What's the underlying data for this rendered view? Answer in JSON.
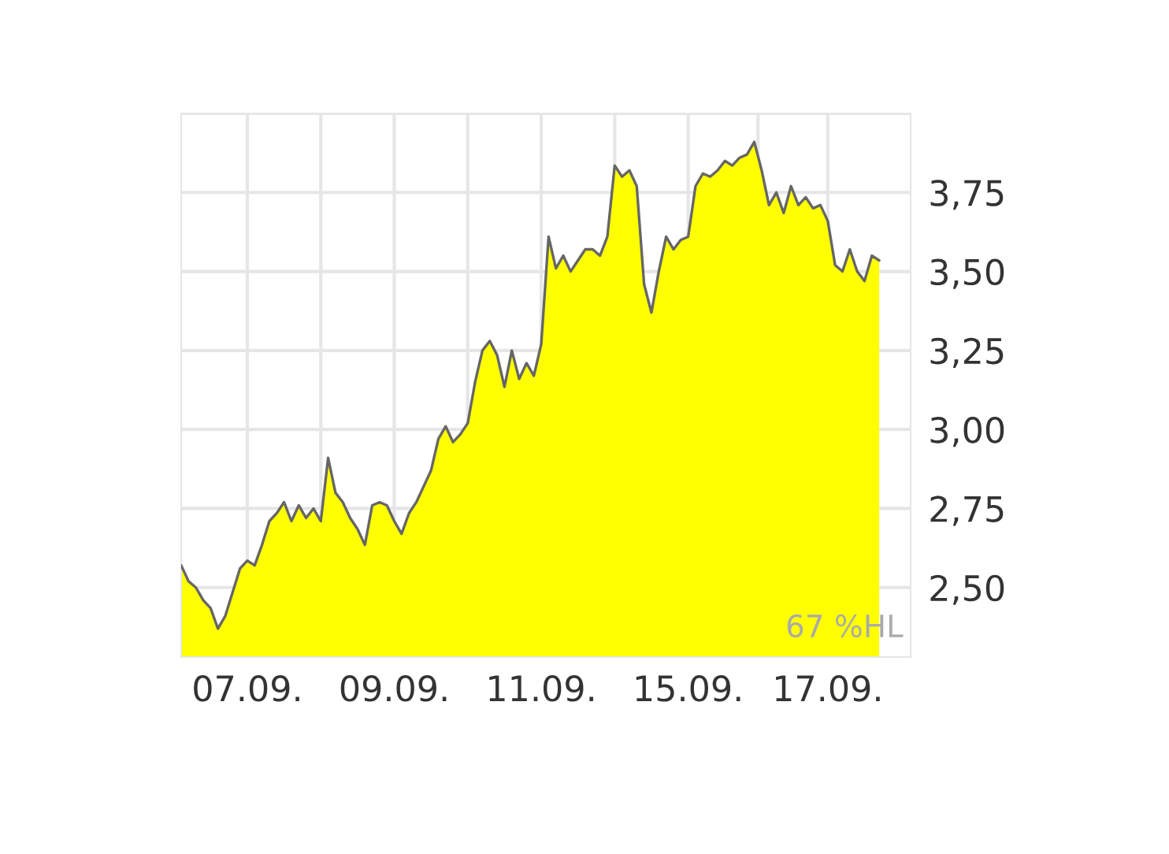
{
  "chart_data": {
    "type": "area",
    "color": "#ffff00",
    "categories": [
      null,
      null,
      null,
      null,
      null,
      null,
      null,
      null,
      null,
      "07.09.",
      null,
      null,
      null,
      null,
      null,
      null,
      null,
      null,
      null,
      null,
      null,
      null,
      null,
      null,
      null,
      null,
      null,
      null,
      null,
      "09.09.",
      null,
      null,
      null,
      null,
      null,
      null,
      null,
      null,
      null,
      null,
      null,
      null,
      null,
      null,
      null,
      null,
      null,
      null,
      null,
      "11.09.",
      null,
      null,
      null,
      null,
      null,
      null,
      null,
      null,
      null,
      null,
      null,
      null,
      null,
      null,
      null,
      null,
      null,
      null,
      null,
      "15.09.",
      null,
      null,
      null,
      null,
      null,
      null,
      null,
      null,
      null,
      null,
      null,
      null,
      null,
      null,
      null,
      null,
      null,
      null,
      "17.09.",
      null,
      null,
      null,
      null,
      null,
      null,
      null
    ],
    "values": [
      2.57,
      2.52,
      2.5,
      2.46,
      2.435,
      2.37,
      2.41,
      2.485,
      2.56,
      2.585,
      2.57,
      2.635,
      2.71,
      2.735,
      2.77,
      2.71,
      2.76,
      2.72,
      2.75,
      2.71,
      2.91,
      2.8,
      2.77,
      2.72,
      2.685,
      2.635,
      2.76,
      2.77,
      2.76,
      2.71,
      2.67,
      2.735,
      2.77,
      2.82,
      2.87,
      2.97,
      3.01,
      2.96,
      2.985,
      3.02,
      3.15,
      3.25,
      3.28,
      3.235,
      3.135,
      3.25,
      3.16,
      3.21,
      3.17,
      3.27,
      3.61,
      3.51,
      3.55,
      3.5,
      3.535,
      3.57,
      3.57,
      3.55,
      3.61,
      3.835,
      3.8,
      3.82,
      3.77,
      3.46,
      3.37,
      3.5,
      3.61,
      3.57,
      3.6,
      3.61,
      3.77,
      3.81,
      3.8,
      3.82,
      3.85,
      3.835,
      3.86,
      3.87,
      3.91,
      3.82,
      3.71,
      3.75,
      3.685,
      3.77,
      3.71,
      3.735,
      3.7,
      3.71,
      3.66,
      3.52,
      3.5,
      3.57,
      3.5,
      3.47,
      3.55,
      3.535
    ],
    "ylim": [
      2.28,
      4.0
    ],
    "yticks": [
      {
        "value": 2.5,
        "label": "2,50"
      },
      {
        "value": 2.75,
        "label": "2,75"
      },
      {
        "value": 3.0,
        "label": "3,00"
      },
      {
        "value": 3.25,
        "label": "3,25"
      },
      {
        "value": 3.5,
        "label": "3,50"
      },
      {
        "value": 3.75,
        "label": "3,75"
      },
      {
        "value": 4.0,
        "label": null
      }
    ],
    "grid": true,
    "annotations": [
      "67 %HL"
    ]
  }
}
